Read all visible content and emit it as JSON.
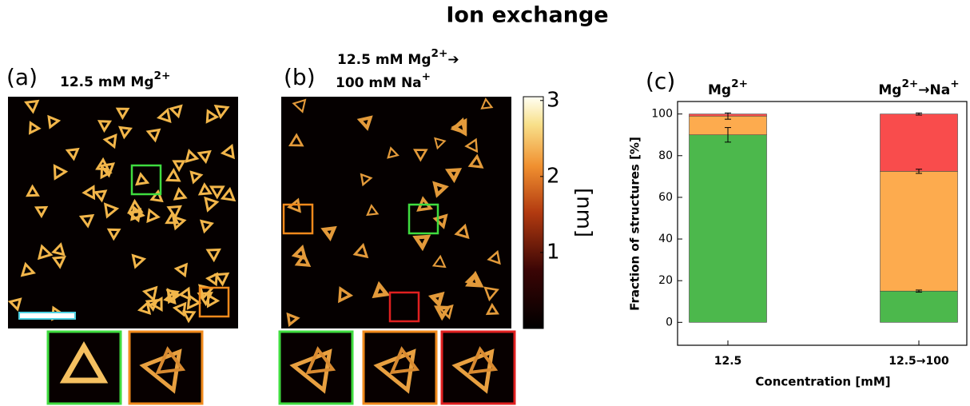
{
  "title": "Ion exchange",
  "panels": [
    {
      "label": "(a)",
      "caption_lines": [
        [
          "12.5 mM Mg",
          "2+"
        ]
      ]
    },
    {
      "label": "(b)",
      "caption_lines": [
        [
          "12.5 mM Mg",
          "2+",
          "➔"
        ],
        [
          "100 mM Na",
          "+"
        ]
      ],
      "colorbar": {
        "label": "[nm]",
        "lim": [
          0,
          3.05
        ],
        "ticks": [
          1,
          2,
          3
        ]
      }
    },
    {
      "label": "(c)"
    }
  ],
  "chart_data": {
    "type": "stacked_bar",
    "categories": [
      "12.5",
      "12.5→100"
    ],
    "category_headers": [
      [
        "Mg",
        "2+"
      ],
      [
        "Mg",
        "2+",
        "→Na",
        "+"
      ]
    ],
    "xlabel": "Concentration [mM]",
    "ylabel": "Fraction of structures [%]",
    "ylim": [
      -11,
      106
    ],
    "yticks": [
      0,
      20,
      40,
      60,
      80,
      100
    ],
    "series": [
      {
        "color": "#4cb84c",
        "values": [
          90,
          15
        ],
        "errors": [
          3.5,
          0.5
        ]
      },
      {
        "color": "#fdab4e",
        "values": [
          9,
          57.5
        ],
        "errors": [
          1.5,
          1
        ]
      },
      {
        "color": "#f94c4c",
        "values": [
          1,
          27.5
        ],
        "errors": [
          null,
          0.5
        ]
      }
    ]
  }
}
